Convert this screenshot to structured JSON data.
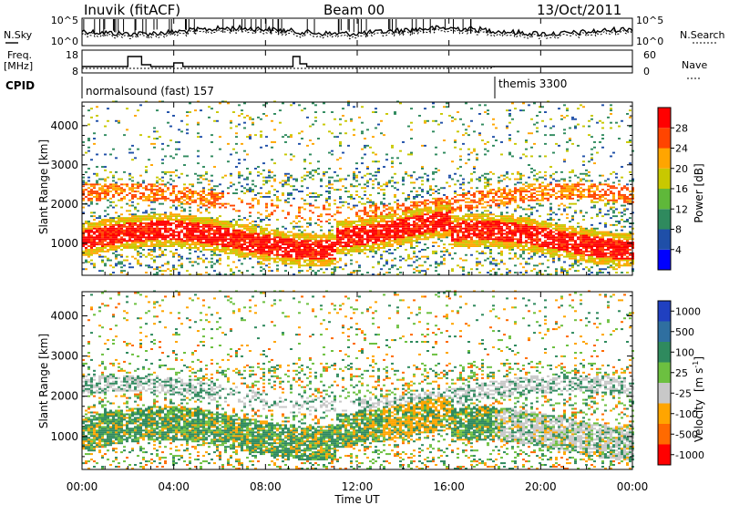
{
  "header": {
    "station": "Inuvik (fitACF)",
    "beam": "Beam 00",
    "date": "13/Oct/2011"
  },
  "top_panels": {
    "nsky_label": "N.Sky",
    "nsky_ticks": [
      "10^5",
      "10^0"
    ],
    "nsearch_label": "N.Search",
    "nsearch_ticks": [
      "10^5",
      "10^0"
    ],
    "freq_label": "Freq.",
    "freq_unit": "[MHz]",
    "freq_ticks": [
      "18",
      "8"
    ],
    "nave_label": "Nave",
    "nave_ticks": [
      "60",
      "0"
    ],
    "cpid_label": "CPID",
    "cpid_segments": [
      {
        "name": "normalsound (fast) 157",
        "start_hour": 0
      },
      {
        "name": "themis 3300",
        "start_hour": 18
      }
    ]
  },
  "chart_data": [
    {
      "type": "heatmap",
      "ylabel": "Slant Range [km]",
      "xlabel": "Time UT",
      "x_ticks": [
        "00:00",
        "04:00",
        "08:00",
        "12:00",
        "16:00",
        "20:00",
        "00:00"
      ],
      "y_ticks": [
        1000,
        2000,
        3000,
        4000
      ],
      "xlim": [
        0,
        24
      ],
      "ylim": [
        180,
        4600
      ],
      "colorbar": {
        "label": "Power [dB]",
        "ticks": [
          "28",
          "24",
          "20",
          "16",
          "12",
          "8",
          "4"
        ],
        "range": [
          0,
          32
        ],
        "colors": [
          "#0000ff",
          "#1f4fa8",
          "#2f8a5e",
          "#5fb83a",
          "#c8c800",
          "#ffa500",
          "#ff4500",
          "#ff0000"
        ]
      }
    },
    {
      "type": "heatmap",
      "ylabel": "Slant Range [km]",
      "xlabel": "Time UT",
      "x_ticks": [
        "00:00",
        "04:00",
        "08:00",
        "12:00",
        "16:00",
        "20:00",
        "00:00"
      ],
      "y_ticks": [
        1000,
        2000,
        3000,
        4000
      ],
      "xlim": [
        0,
        24
      ],
      "ylim": [
        180,
        4600
      ],
      "colorbar": {
        "label": "Velocity",
        "unit": "[m s",
        "unit_sup": "-1",
        "unit_end": "]",
        "ticks": [
          "1000",
          "500",
          "100",
          "25",
          "-25",
          "-100",
          "-500",
          "-1000"
        ],
        "colors": [
          "#2040c0",
          "#2f6fa0",
          "#2f8a5e",
          "#6cc040",
          "#c8c8c8",
          "#ffa500",
          "#ff6a00",
          "#ff0000"
        ]
      }
    }
  ],
  "colors": {
    "power_hi": "#ff0000",
    "power_mid": "#ffa500",
    "power_lo": "#2f8a5e",
    "vel_pos": "#2f8a5e",
    "vel_zero": "#c8c8c8",
    "vel_neg": "#ffa500"
  }
}
